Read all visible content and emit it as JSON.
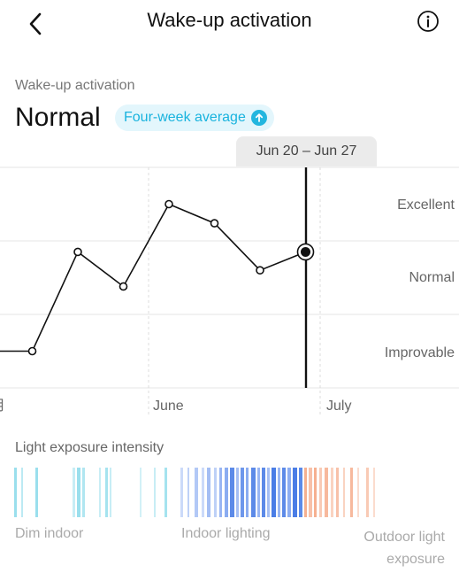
{
  "header": {
    "title": "Wake-up activation",
    "back_icon": "chevron-left-icon",
    "info_icon": "info-circle-icon"
  },
  "summary": {
    "label": "Wake-up activation",
    "value": "Normal",
    "badge_label": "Four-week average",
    "badge_icon": "arrow-up-circle-icon",
    "badge_color": "#19b3de"
  },
  "chart": {
    "selected_range": "Jun 20 – Jun 27",
    "y_labels": [
      "Excellent",
      "Normal",
      "Improvable"
    ],
    "x_labels": [
      "月",
      "June",
      "July"
    ]
  },
  "chart_data": {
    "type": "line",
    "ylabel_categories": [
      "Improvable",
      "Normal",
      "Excellent"
    ],
    "ylim": [
      0,
      3
    ],
    "series": [
      {
        "values": [
          0.5,
          0.5,
          1.85,
          1.38,
          2.5,
          2.24,
          1.6,
          1.85
        ]
      }
    ],
    "selected_index": 7,
    "grid": true
  },
  "light_exposure": {
    "title": "Light exposure intensity",
    "labels": {
      "dim": "Dim indoor",
      "indoor": "Indoor lighting",
      "outdoor": "Outdoor light exposure"
    },
    "colors": {
      "dim": "#8fdceb",
      "indoor": "#7ea3f0",
      "indoor_strong": "#4a7de6",
      "outdoor": "#f5a784"
    }
  }
}
